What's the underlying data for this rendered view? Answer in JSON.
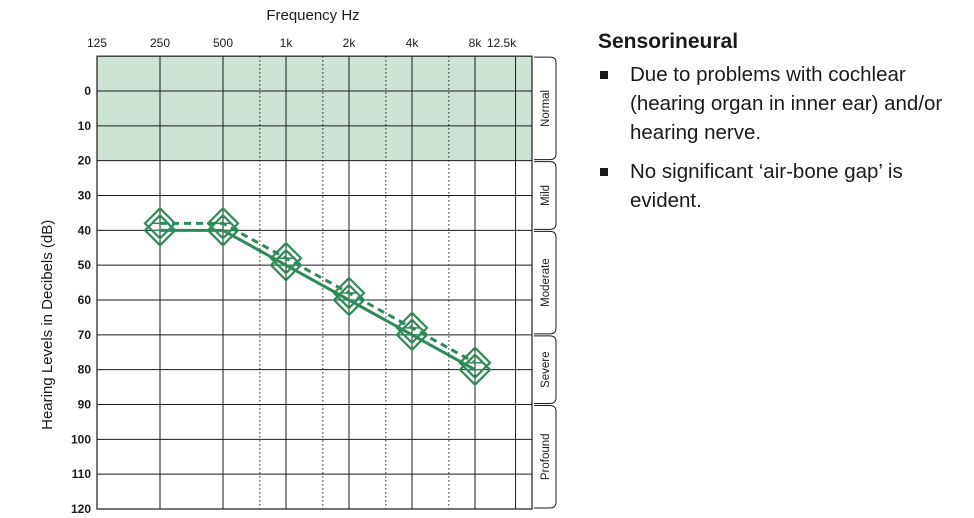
{
  "chart_data": {
    "type": "line",
    "title": "",
    "xlabel": "Frequency Hz",
    "ylabel": "Hearing Levels in Decibels (dB)",
    "x_scale": "log",
    "x_ticks": [
      125,
      250,
      500,
      1000,
      2000,
      4000,
      8000,
      12500
    ],
    "x_tick_labels": [
      "125",
      "250",
      "500",
      "1k",
      "2k",
      "4k",
      "8k",
      "12.5k"
    ],
    "x_minor_ticks": [
      750,
      1500,
      3000,
      6000
    ],
    "y_ticks": [
      0,
      10,
      20,
      30,
      40,
      50,
      60,
      70,
      80,
      90,
      100,
      110,
      120
    ],
    "y_tick_labels": [
      "0",
      "10",
      "20",
      "30",
      "40",
      "50",
      "60",
      "70",
      "80",
      "90",
      "100",
      "110",
      "120"
    ],
    "ylim": [
      -10,
      120
    ],
    "y_inverted": true,
    "grid": true,
    "normal_band": {
      "from": -10,
      "to": 20,
      "color": "#cfe3d4"
    },
    "severity_bands": [
      {
        "label": "Normal",
        "from": -10,
        "to": 20
      },
      {
        "label": "Mild",
        "from": 20,
        "to": 40
      },
      {
        "label": "Moderate",
        "from": 40,
        "to": 70
      },
      {
        "label": "Severe",
        "from": 70,
        "to": 90
      },
      {
        "label": "Profound",
        "from": 90,
        "to": 120
      }
    ],
    "series": [
      {
        "line_style": "solid",
        "marker": "diamond",
        "color": "#2e8b57",
        "x": [
          250,
          500,
          1000,
          2000,
          4000,
          8000
        ],
        "y": [
          40,
          40,
          50,
          60,
          70,
          80
        ]
      },
      {
        "line_style": "dashed",
        "marker": "diamond",
        "color": "#2e8b57",
        "x": [
          250,
          500,
          1000,
          2000,
          4000,
          8000
        ],
        "y": [
          38,
          38,
          48,
          58,
          68,
          78
        ]
      }
    ]
  },
  "notes": {
    "heading": "Sensorineural",
    "bullets": [
      "Due to problems with cochlear (hearing organ in inner ear) and/or hearing nerve.",
      "No significant ‘air-bone gap’ is evident."
    ]
  },
  "colors": {
    "line": "#2e8b57",
    "grid": "#1a1a1a",
    "normal_band": "#cfe3d4"
  }
}
